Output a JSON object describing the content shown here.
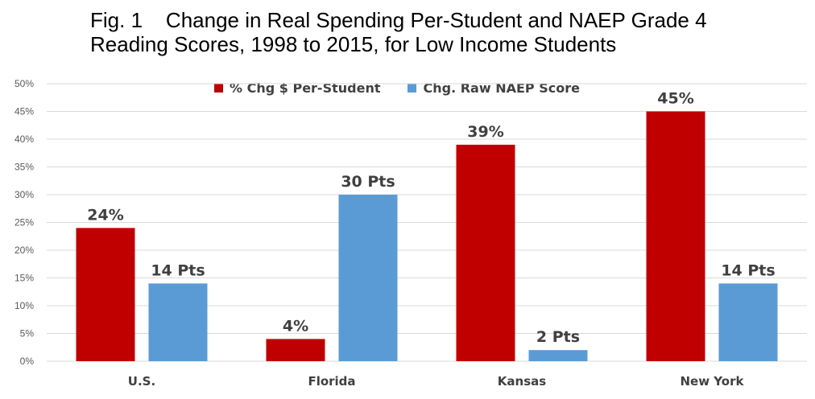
{
  "title_line1": "Fig. 1    Change in Real Spending Per-Student and NAEP Grade 4",
  "title_line2": "Reading Scores, 1998 to 2015, for Low Income Students",
  "colors": {
    "spending": "#C00000",
    "naep": "#5B9BD5",
    "grid": "#D9D9D9",
    "axis_text": "#595959",
    "label_text": "#404040"
  },
  "chart_data": {
    "type": "bar",
    "title": "Fig. 1    Change in Real Spending Per-Student and NAEP Grade 4 Reading Scores, 1998 to 2015, for Low Income Students",
    "categories": [
      "U.S.",
      "Florida",
      "Kansas",
      "New York"
    ],
    "series": [
      {
        "name": "% Chg $ Per-Student",
        "values": [
          24,
          4,
          39,
          45
        ],
        "labels": [
          "24%",
          "4%",
          "39%",
          "45%"
        ]
      },
      {
        "name": "Chg. Raw NAEP Score",
        "values": [
          14,
          30,
          2,
          14
        ],
        "labels": [
          "14 Pts",
          "30 Pts",
          "2 Pts",
          "14 Pts"
        ]
      }
    ],
    "ylim": [
      0,
      50
    ],
    "yticks": [
      "0%",
      "5%",
      "10%",
      "15%",
      "20%",
      "25%",
      "30%",
      "35%",
      "40%",
      "45%",
      "50%"
    ],
    "grid": true,
    "legend": "top-center"
  }
}
